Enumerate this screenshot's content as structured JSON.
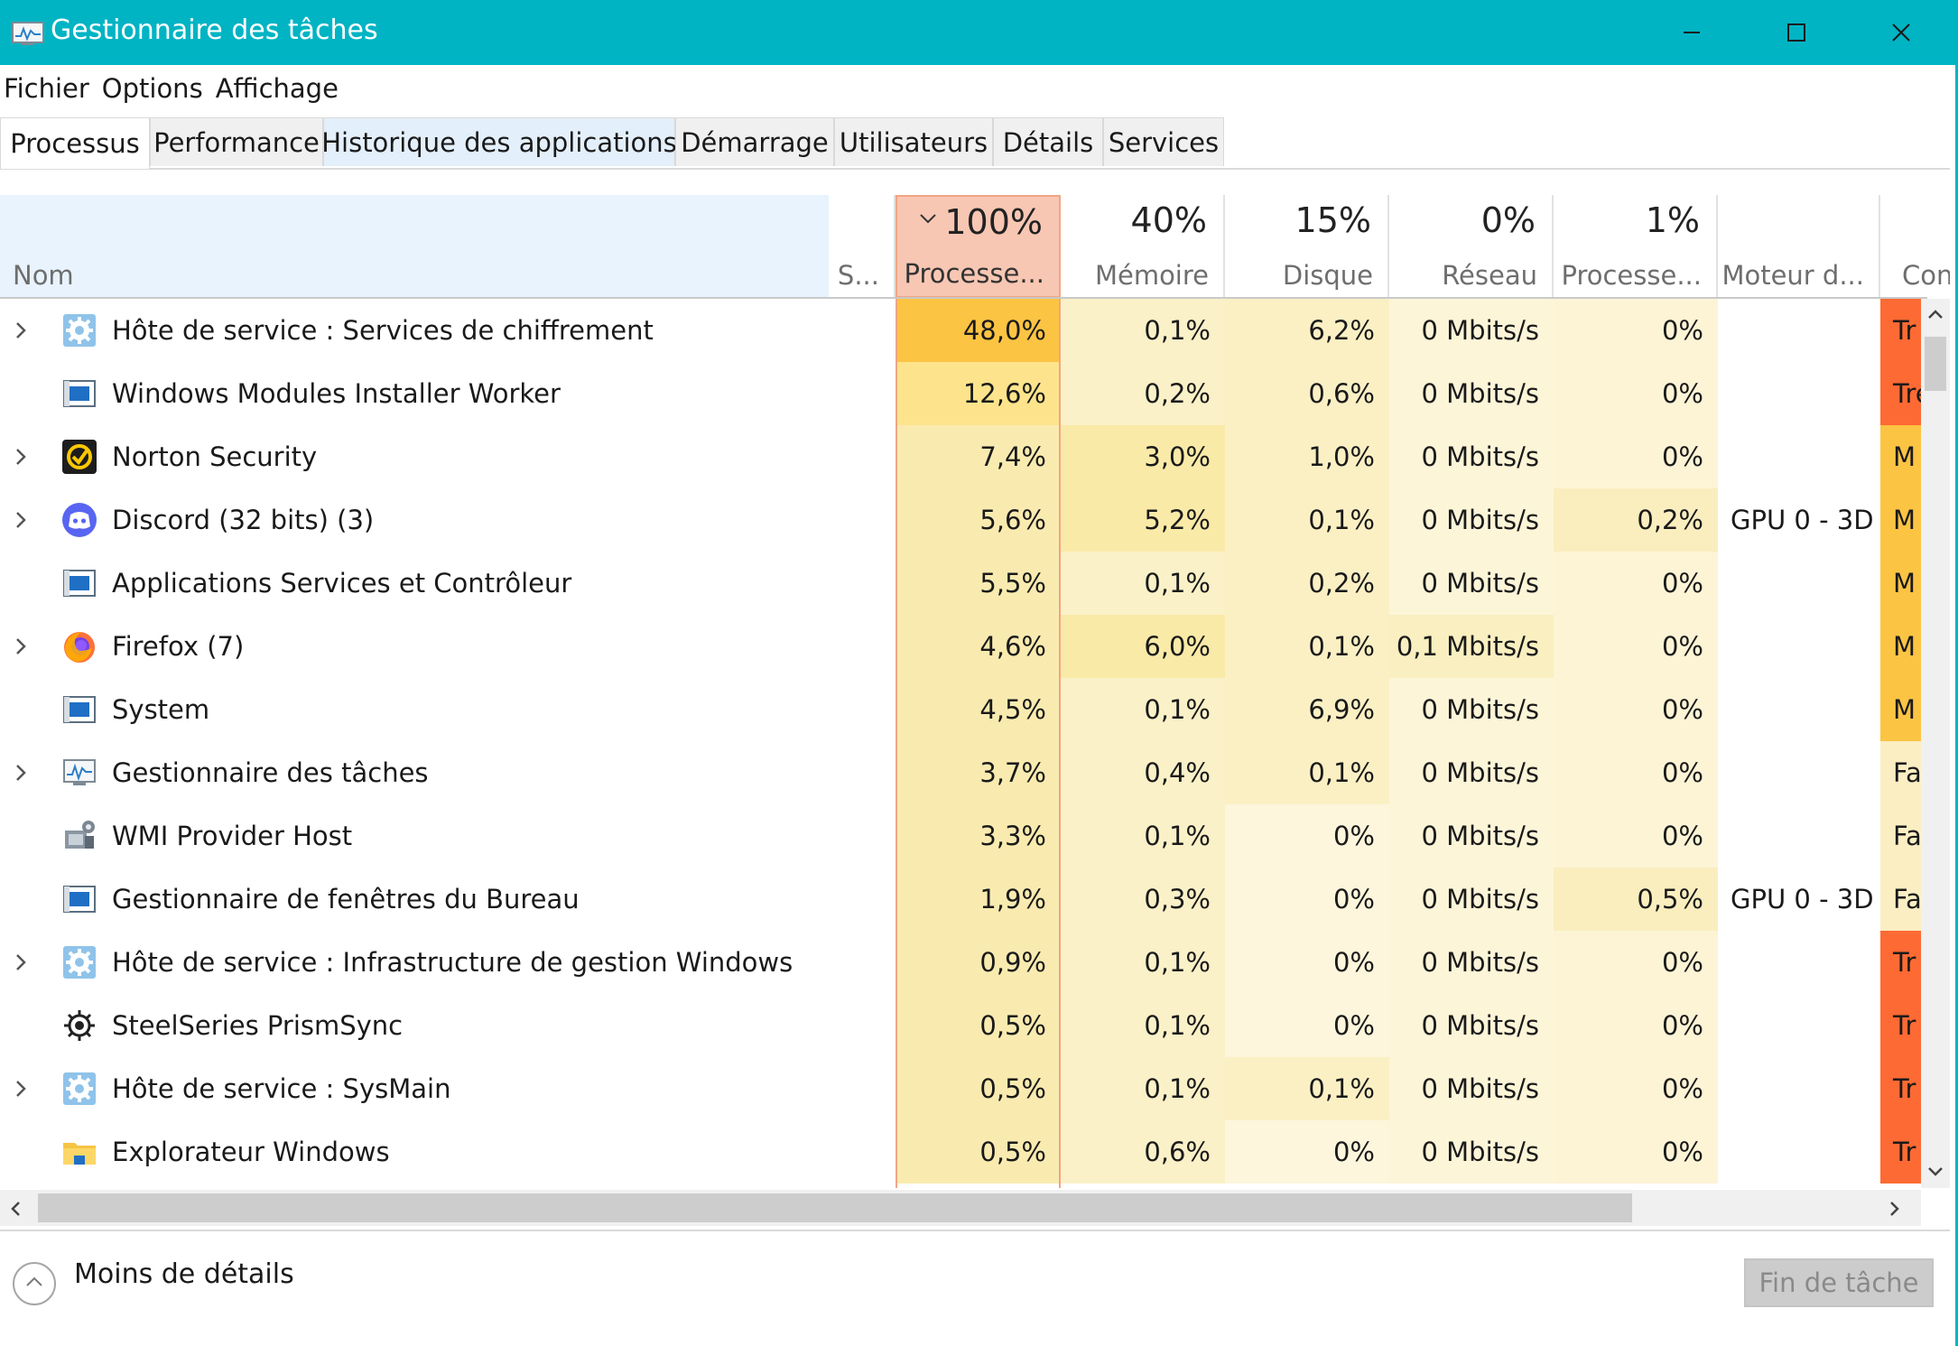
{
  "window": {
    "title": "Gestionnaire des tâches",
    "accent": "#00b4c4"
  },
  "menu": [
    "Fichier",
    "Options",
    "Affichage"
  ],
  "tabs": [
    "Processus",
    "Performance",
    "Historique des applications",
    "Démarrage",
    "Utilisateurs",
    "Détails",
    "Services"
  ],
  "header": {
    "name": "Nom",
    "status": "S...",
    "cpu_pct": "100%",
    "cpu": "Processe...",
    "mem_pct": "40%",
    "mem": "Mémoire",
    "disk_pct": "15%",
    "disk": "Disque",
    "net_pct": "0%",
    "net": "Réseau",
    "gpu_pct": "1%",
    "gpu": "Processe...",
    "gpu_engine": "Moteur d...",
    "power": "Con"
  },
  "processes": [
    {
      "name": "Hôte de service : Services de chiffrement",
      "icon": "gear-icon",
      "expandable": true,
      "cpu": "48,0%",
      "mem": "0,1%",
      "disk": "6,2%",
      "net": "0 Mbits/s",
      "gpu": "0%",
      "engine": "",
      "power": "Tr"
    },
    {
      "name": "Windows Modules Installer Worker",
      "icon": "window-icon",
      "expandable": false,
      "cpu": "12,6%",
      "mem": "0,2%",
      "disk": "0,6%",
      "net": "0 Mbits/s",
      "gpu": "0%",
      "engine": "",
      "power": "Tre"
    },
    {
      "name": "Norton Security",
      "icon": "norton-icon",
      "expandable": true,
      "cpu": "7,4%",
      "mem": "3,0%",
      "disk": "1,0%",
      "net": "0 Mbits/s",
      "gpu": "0%",
      "engine": "",
      "power": "M"
    },
    {
      "name": "Discord (32 bits) (3)",
      "icon": "discord-icon",
      "expandable": true,
      "cpu": "5,6%",
      "mem": "5,2%",
      "disk": "0,1%",
      "net": "0 Mbits/s",
      "gpu": "0,2%",
      "engine": "GPU 0 - 3D",
      "power": "M"
    },
    {
      "name": "Applications Services et Contrôleur",
      "icon": "window-icon",
      "expandable": false,
      "cpu": "5,5%",
      "mem": "0,1%",
      "disk": "0,2%",
      "net": "0 Mbits/s",
      "gpu": "0%",
      "engine": "",
      "power": "M"
    },
    {
      "name": "Firefox (7)",
      "icon": "firefox-icon",
      "expandable": true,
      "cpu": "4,6%",
      "mem": "6,0%",
      "disk": "0,1%",
      "net": "0,1 Mbits/s",
      "gpu": "0%",
      "engine": "",
      "power": "M"
    },
    {
      "name": "System",
      "icon": "window-icon",
      "expandable": false,
      "cpu": "4,5%",
      "mem": "0,1%",
      "disk": "6,9%",
      "net": "0 Mbits/s",
      "gpu": "0%",
      "engine": "",
      "power": "M"
    },
    {
      "name": "Gestionnaire des tâches",
      "icon": "task-manager-icon",
      "expandable": true,
      "cpu": "3,7%",
      "mem": "0,4%",
      "disk": "0,1%",
      "net": "0 Mbits/s",
      "gpu": "0%",
      "engine": "",
      "power": "Fa"
    },
    {
      "name": "WMI Provider Host",
      "icon": "wmi-icon",
      "expandable": false,
      "cpu": "3,3%",
      "mem": "0,1%",
      "disk": "0%",
      "net": "0 Mbits/s",
      "gpu": "0%",
      "engine": "",
      "power": "Fa"
    },
    {
      "name": "Gestionnaire de fenêtres du Bureau",
      "icon": "window-icon",
      "expandable": false,
      "cpu": "1,9%",
      "mem": "0,3%",
      "disk": "0%",
      "net": "0 Mbits/s",
      "gpu": "0,5%",
      "engine": "GPU 0 - 3D",
      "power": "Fa"
    },
    {
      "name": "Hôte de service : Infrastructure de gestion Windows",
      "icon": "gear-icon",
      "expandable": true,
      "cpu": "0,9%",
      "mem": "0,1%",
      "disk": "0%",
      "net": "0 Mbits/s",
      "gpu": "0%",
      "engine": "",
      "power": "Tr"
    },
    {
      "name": "SteelSeries PrismSync",
      "icon": "steelseries-icon",
      "expandable": false,
      "cpu": "0,5%",
      "mem": "0,1%",
      "disk": "0%",
      "net": "0 Mbits/s",
      "gpu": "0%",
      "engine": "",
      "power": "Tr"
    },
    {
      "name": "Hôte de service : SysMain",
      "icon": "gear-icon",
      "expandable": true,
      "cpu": "0,5%",
      "mem": "0,1%",
      "disk": "0,1%",
      "net": "0 Mbits/s",
      "gpu": "0%",
      "engine": "",
      "power": "Tr"
    },
    {
      "name": "Explorateur Windows",
      "icon": "folder-icon",
      "expandable": false,
      "cpu": "0,5%",
      "mem": "0,6%",
      "disk": "0%",
      "net": "0 Mbits/s",
      "gpu": "0%",
      "engine": "",
      "power": "Tr"
    }
  ],
  "footer": {
    "less_details": "Moins de détails",
    "end_task": "Fin de tâche"
  }
}
